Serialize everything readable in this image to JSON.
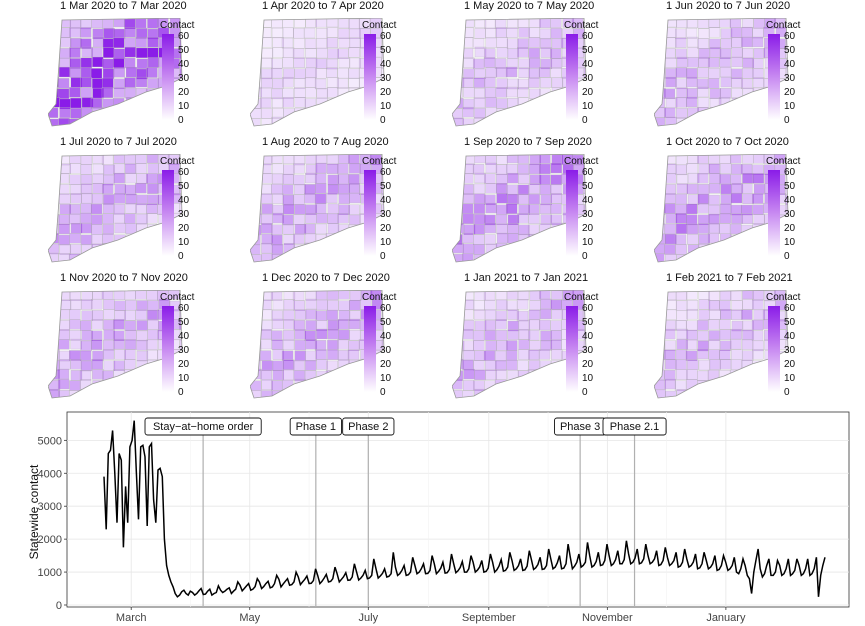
{
  "legend": {
    "title": "Contact",
    "ticks": [
      "60",
      "50",
      "40",
      "30",
      "20",
      "10",
      "0"
    ],
    "color_high": "#8a1ce8",
    "color_low": "#ffffff"
  },
  "panels": [
    {
      "title": "1 Mar 2020 to 7 Mar 2020",
      "intensity": 0.85
    },
    {
      "title": "1 Apr 2020 to 7 Apr 2020",
      "intensity": 0.12
    },
    {
      "title": "1 May 2020 to 7 May 2020",
      "intensity": 0.22
    },
    {
      "title": "1 Jun 2020 to 7 Jun 2020",
      "intensity": 0.25
    },
    {
      "title": "1 Jul 2020 to 7 Jul 2020",
      "intensity": 0.3
    },
    {
      "title": "1 Aug 2020 to 7 Aug 2020",
      "intensity": 0.33
    },
    {
      "title": "1 Sep 2020 to 7 Sep 2020",
      "intensity": 0.4
    },
    {
      "title": "1 Oct 2020 to 7 Oct 2020",
      "intensity": 0.38
    },
    {
      "title": "1 Nov 2020 to 7 Nov 2020",
      "intensity": 0.3
    },
    {
      "title": "1 Dec 2020 to 7 Dec 2020",
      "intensity": 0.3
    },
    {
      "title": "1 Jan 2021 to 7 Jan 2021",
      "intensity": 0.28
    },
    {
      "title": "1 Feb 2021 to 7 Feb 2021",
      "intensity": 0.25
    }
  ],
  "chart_data": {
    "type": "line",
    "ylabel": "Statewide contact",
    "xlabel": "",
    "ylim": [
      0,
      5800
    ],
    "yticks": [
      0,
      1000,
      2000,
      3000,
      4000,
      5000
    ],
    "x_tick_labels": [
      {
        "label": "March",
        "day": 14
      },
      {
        "label": "May",
        "day": 75
      },
      {
        "label": "July",
        "day": 136
      },
      {
        "label": "September",
        "day": 198
      },
      {
        "label": "November",
        "day": 259
      },
      {
        "label": "January",
        "day": 320
      }
    ],
    "x_start_label": "2020-02-14",
    "annotations": [
      {
        "label": "Stay−at−home order",
        "day": 51
      },
      {
        "label": "Phase 1",
        "day": 109
      },
      {
        "label": "Phase 2",
        "day": 136
      },
      {
        "label": "Phase 3",
        "day": 245
      },
      {
        "label": "Phase 2.1",
        "day": 273
      }
    ],
    "series": [
      {
        "values": [
          3900,
          2300,
          4600,
          4700,
          5300,
          4000,
          2500,
          4600,
          4400,
          1750,
          3600,
          2500,
          4800,
          5000,
          5600,
          4000,
          2600,
          4800,
          4850,
          4500,
          2400,
          4800,
          4900,
          3200,
          2500,
          4100,
          4150,
          3900,
          2000,
          1200,
          900,
          700,
          550,
          350,
          250,
          300,
          400,
          450,
          350,
          300,
          420,
          380,
          300,
          350,
          430,
          500,
          320,
          330,
          420,
          480,
          300,
          350,
          380,
          580,
          450,
          380,
          420,
          480,
          520,
          350,
          420,
          480,
          700,
          600,
          430,
          500,
          580,
          650,
          450,
          480,
          560,
          800,
          700,
          500,
          560,
          650,
          720,
          520,
          550,
          650,
          900,
          780,
          550,
          640,
          720,
          800,
          600,
          620,
          700,
          1000,
          850,
          620,
          700,
          780,
          880,
          650,
          660,
          740,
          1100,
          900,
          650,
          720,
          820,
          930,
          700,
          720,
          800,
          1150,
          950,
          700,
          780,
          860,
          980,
          750,
          760,
          850,
          1250,
          1000,
          760,
          820,
          900,
          1050,
          800,
          820,
          900,
          1400,
          1100,
          820,
          880,
          960,
          1100,
          850,
          870,
          950,
          1600,
          1150,
          900,
          950,
          1050,
          1200,
          900,
          920,
          1000,
          1450,
          1200,
          950,
          1000,
          1100,
          1250,
          950,
          960,
          1050,
          1500,
          1250,
          950,
          1020,
          1120,
          1300,
          970,
          980,
          1080,
          1550,
          1250,
          980,
          1040,
          1140,
          1320,
          1000,
          1000,
          1100,
          1500,
          1300,
          1000,
          1060,
          1150,
          1350,
          1000,
          1020,
          1120,
          1550,
          1300,
          1000,
          1070,
          1180,
          1380,
          1030,
          1050,
          1150,
          1600,
          1350,
          1050,
          1100,
          1200,
          1400,
          1050,
          1070,
          1180,
          1650,
          1380,
          1080,
          1130,
          1230,
          1450,
          1080,
          1100,
          1200,
          1700,
          1400,
          1100,
          1150,
          1280,
          1500,
          1100,
          1120,
          1250,
          1850,
          1450,
          1100,
          1180,
          1300,
          1550,
          1150,
          1200,
          1300,
          1900,
          1500,
          1150,
          1200,
          1320,
          1600,
          1200,
          1220,
          1350,
          1850,
          1500,
          1200,
          1250,
          1380,
          1650,
          1250,
          1250,
          1380,
          1950,
          1550,
          1250,
          1300,
          1420,
          1700,
          1250,
          1280,
          1400,
          1850,
          1500,
          1250,
          1300,
          1400,
          1650,
          1200,
          1230,
          1350,
          1750,
          1450,
          1200,
          1250,
          1350,
          1600,
          1150,
          1180,
          1300,
          1700,
          1400,
          1150,
          1200,
          1300,
          1550,
          1100,
          1130,
          1250,
          1600,
          1350,
          1100,
          1150,
          1250,
          1500,
          1050,
          1080,
          1200,
          1500,
          1300,
          1050,
          1100,
          1200,
          1450,
          1000,
          950,
          1100,
          1400,
          1200,
          900,
          800,
          350,
          1000,
          1350,
          1700,
          1100,
          850,
          950,
          1200,
          1400,
          900,
          900,
          1000,
          1350,
          1200,
          900,
          950,
          1100,
          1400,
          900,
          950,
          1050,
          1400,
          1200,
          900,
          950,
          1100,
          1400,
          900,
          950,
          1100,
          1450,
          250,
          900,
          1200,
          1450
        ]
      }
    ]
  }
}
